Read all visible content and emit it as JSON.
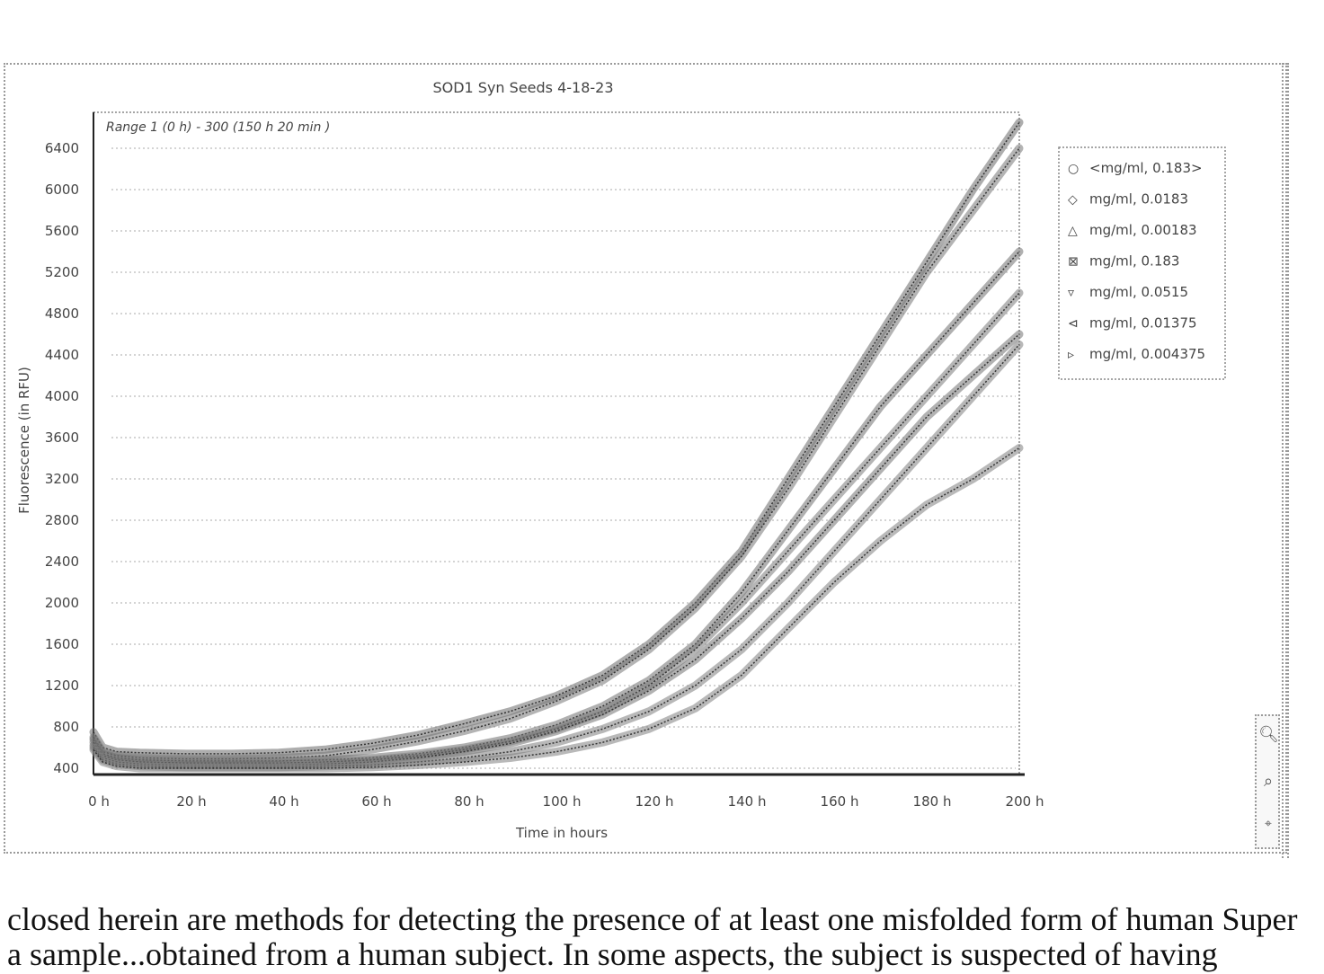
{
  "chart_data": {
    "type": "line",
    "title": "SOD1 Syn Seeds 4-18-23",
    "range_note": "Range 1 (0 h) - 300 (150 h 20 min )",
    "xlabel": "Time in hours",
    "ylabel": "Fluorescence (in RFU)",
    "xlim": [
      0,
      200
    ],
    "ylim": [
      400,
      6800
    ],
    "x_ticks": [
      "0 h",
      "20 h",
      "40 h",
      "60 h",
      "80 h",
      "100 h",
      "120 h",
      "140 h",
      "160 h",
      "180 h",
      "200 h"
    ],
    "y_ticks": [
      "400",
      "800",
      "1200",
      "1600",
      "2000",
      "2400",
      "2800",
      "3200",
      "3600",
      "4000",
      "4400",
      "4800",
      "5200",
      "5600",
      "6000",
      "6400"
    ],
    "grid": true,
    "legend_position": "right",
    "x": [
      0,
      2,
      5,
      10,
      20,
      30,
      40,
      50,
      60,
      70,
      80,
      90,
      100,
      110,
      120,
      130,
      140,
      150,
      160,
      170,
      180,
      190,
      200
    ],
    "series": [
      {
        "name": "<mg/ml, 0.183>",
        "marker": "○",
        "values": [
          750,
          600,
          560,
          550,
          540,
          540,
          550,
          580,
          640,
          720,
          830,
          950,
          1100,
          1300,
          1600,
          2000,
          2500,
          3200,
          3900,
          4600,
          5300,
          6000,
          6650
        ]
      },
      {
        "name": "mg/ml, 0.0183",
        "marker": "◇",
        "values": [
          700,
          560,
          520,
          500,
          490,
          490,
          500,
          520,
          580,
          660,
          760,
          880,
          1050,
          1250,
          1550,
          1950,
          2450,
          3100,
          3800,
          4500,
          5200,
          5800,
          6400
        ]
      },
      {
        "name": "mg/ml, 0.00183",
        "marker": "△",
        "values": [
          680,
          540,
          500,
          480,
          470,
          470,
          470,
          480,
          500,
          540,
          600,
          690,
          820,
          1000,
          1250,
          1600,
          2100,
          2700,
          3300,
          3900,
          4400,
          4900,
          5400
        ]
      },
      {
        "name": "mg/ml, 0.183",
        "marker": "⊠",
        "values": [
          650,
          520,
          480,
          460,
          450,
          450,
          450,
          460,
          480,
          520,
          580,
          660,
          780,
          950,
          1200,
          1550,
          2000,
          2500,
          3000,
          3500,
          4000,
          4500,
          5000
        ]
      },
      {
        "name": "mg/ml, 0.0515",
        "marker": "▿",
        "values": [
          620,
          500,
          460,
          440,
          430,
          430,
          430,
          440,
          460,
          500,
          560,
          640,
          760,
          920,
          1150,
          1450,
          1850,
          2300,
          2800,
          3300,
          3800,
          4200,
          4600
        ]
      },
      {
        "name": "mg/ml, 0.01375",
        "marker": "⊲",
        "values": [
          600,
          480,
          440,
          420,
          410,
          410,
          410,
          420,
          430,
          460,
          500,
          560,
          650,
          780,
          950,
          1200,
          1550,
          2000,
          2500,
          3000,
          3500,
          4000,
          4500
        ]
      },
      {
        "name": "mg/ml, 0.004375",
        "marker": "▹",
        "values": [
          580,
          460,
          420,
          400,
          400,
          400,
          400,
          400,
          410,
          430,
          460,
          500,
          560,
          650,
          780,
          980,
          1300,
          1750,
          2200,
          2600,
          2950,
          3200,
          3500
        ]
      }
    ]
  },
  "toolbar": {
    "zoom_in_icon": "zoom-in-icon",
    "zoom_out_icon": "zoom-out-icon",
    "reset_icon": "reset-zoom-icon"
  },
  "page_text": {
    "line1": "closed herein are methods for detecting the presence of at least one misfolded form of human Super",
    "line2": "a sample...obtained from a human subject. In some aspects, the subject is suspected of having"
  }
}
